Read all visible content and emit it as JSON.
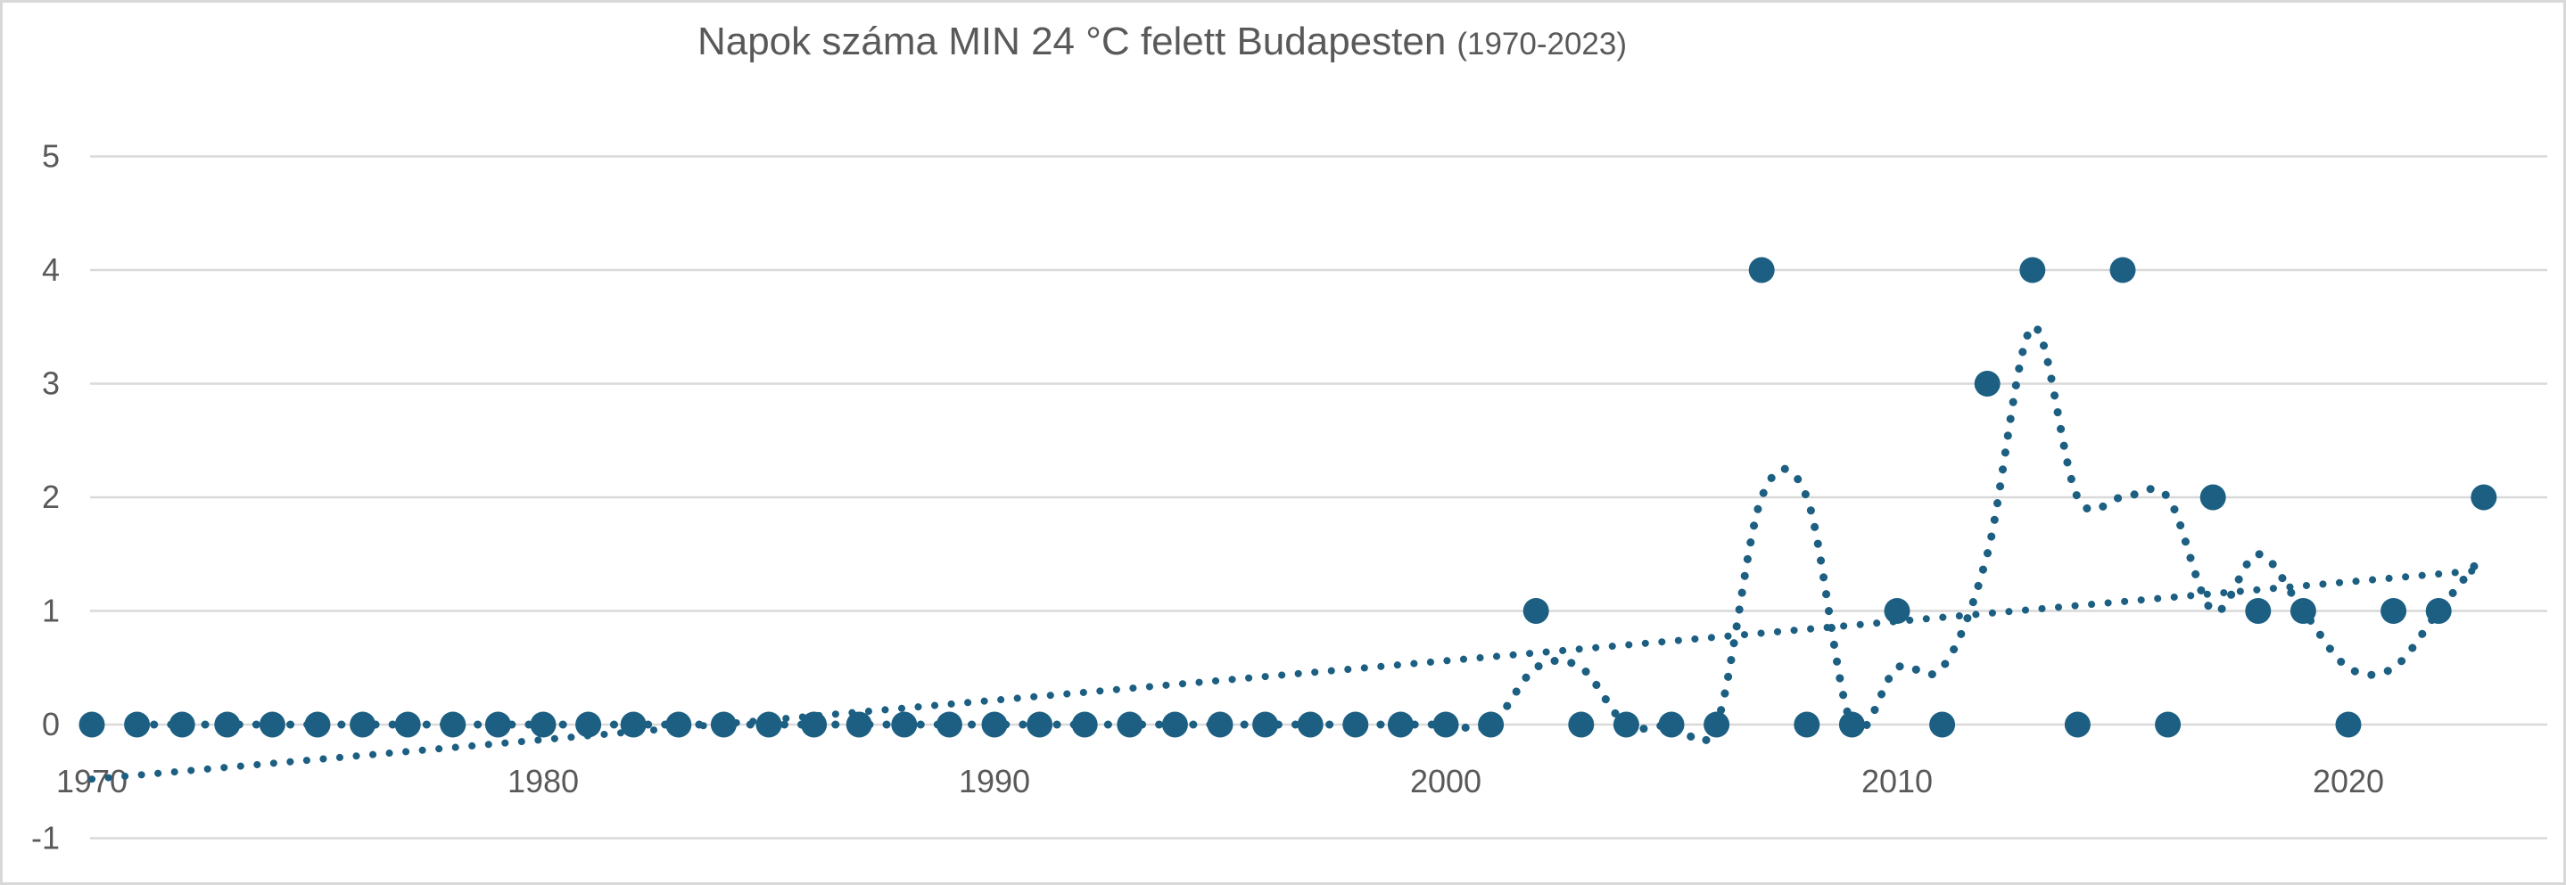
{
  "title": {
    "main": "Napok száma MIN 24 °C felett Budapesten",
    "range": "(1970-2023)"
  },
  "colors": {
    "series": "#1c5f82",
    "gridline": "#d9d9d9",
    "axis_text": "#595959",
    "title_text": "#595959",
    "page_border": "#d8d8d8",
    "background": "#ffffff"
  },
  "chart_data": {
    "type": "scatter",
    "title": "Napok száma MIN 24 °C felett Budapesten (1970-2023)",
    "xlabel": "",
    "ylabel": "",
    "grid": true,
    "legend": "none",
    "xlim": [
      1970,
      2023
    ],
    "ylim": [
      -1,
      5
    ],
    "x_ticks": [
      1970,
      1980,
      1990,
      2000,
      2010,
      2020
    ],
    "y_ticks": [
      5,
      4,
      3,
      2,
      1,
      0,
      -1
    ],
    "x": [
      1970,
      1971,
      1972,
      1973,
      1974,
      1975,
      1976,
      1977,
      1978,
      1979,
      1980,
      1981,
      1982,
      1983,
      1984,
      1985,
      1986,
      1987,
      1988,
      1989,
      1990,
      1991,
      1992,
      1993,
      1994,
      1995,
      1996,
      1997,
      1998,
      1999,
      2000,
      2001,
      2002,
      2003,
      2004,
      2005,
      2006,
      2007,
      2008,
      2009,
      2010,
      2011,
      2012,
      2013,
      2014,
      2015,
      2016,
      2017,
      2018,
      2019,
      2020,
      2021,
      2022,
      2023
    ],
    "series": [
      {
        "name": "scatter-points",
        "type": "scatter",
        "values": [
          0,
          0,
          0,
          0,
          0,
          0,
          0,
          0,
          0,
          0,
          0,
          0,
          0,
          0,
          0,
          0,
          0,
          0,
          0,
          0,
          0,
          0,
          0,
          0,
          0,
          0,
          0,
          0,
          0,
          0,
          0,
          0,
          1,
          0,
          0,
          0,
          0,
          4,
          0,
          0,
          1,
          0,
          3,
          4,
          0,
          4,
          0,
          2,
          1,
          1,
          0,
          1,
          1,
          2
        ]
      },
      {
        "name": "moving-average-2yr",
        "type": "dotted-line",
        "x_start": 1971,
        "values": [
          0,
          0,
          0,
          0,
          0,
          0,
          0,
          0,
          0,
          0,
          0,
          0,
          0,
          0,
          0,
          0,
          0,
          0,
          0,
          0,
          0,
          0,
          0,
          0,
          0,
          0,
          0,
          0,
          0,
          0,
          0,
          0.5,
          0.5,
          0,
          0,
          0,
          2,
          2,
          0,
          0.5,
          0.5,
          1.5,
          3.5,
          2,
          2,
          2,
          1,
          1.5,
          1,
          0.5,
          0.5,
          1,
          1.5
        ]
      },
      {
        "name": "linear-trend",
        "type": "dotted-line",
        "points": [
          [
            1970,
            -0.48
          ],
          [
            2023,
            1.36
          ]
        ]
      }
    ]
  }
}
